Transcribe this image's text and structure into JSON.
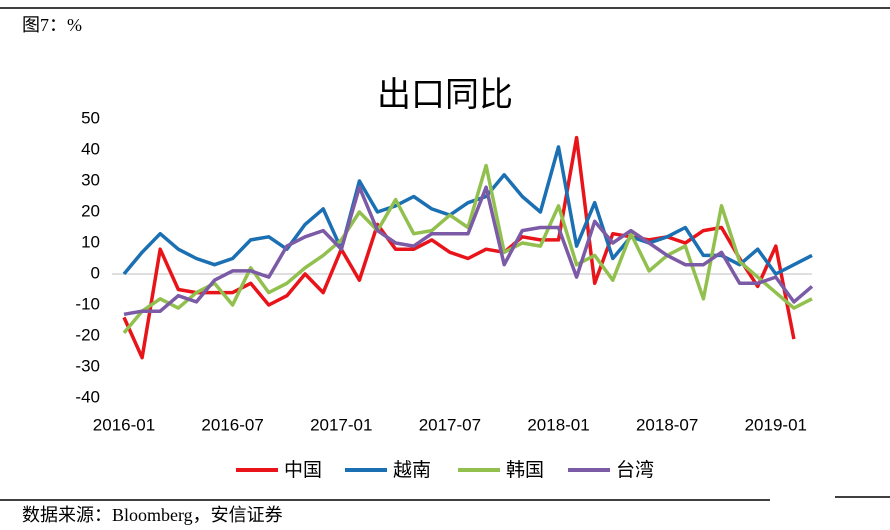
{
  "header": "图7：%",
  "source": "数据来源：Bloomberg，安信证券",
  "chart_data": {
    "type": "line",
    "title": "出口同比",
    "categories": [
      "2016-01",
      null,
      null,
      null,
      null,
      null,
      "2016-07",
      null,
      null,
      null,
      null,
      null,
      "2017-01",
      null,
      null,
      null,
      null,
      null,
      "2017-07",
      null,
      null,
      null,
      null,
      null,
      "2018-01",
      null,
      null,
      null,
      null,
      null,
      "2018-07",
      null,
      null,
      null,
      null,
      null,
      "2019-01",
      null,
      null
    ],
    "ylim": [
      -40,
      50
    ],
    "yticks": [
      -40,
      -30,
      -20,
      -10,
      0,
      10,
      20,
      30,
      40,
      50
    ],
    "legend": "bottom",
    "series": [
      {
        "name": "中国",
        "color": "#e8141a",
        "values": [
          -14,
          -27,
          8,
          -5,
          -6,
          -6,
          -6,
          -3,
          -10,
          -7,
          0,
          -6,
          8,
          -2,
          16,
          8,
          8,
          11,
          7,
          5,
          8,
          7,
          12,
          11,
          11,
          44,
          -3,
          13,
          12,
          11,
          12,
          10,
          14,
          15,
          5,
          -4,
          9,
          -21,
          null
        ]
      },
      {
        "name": "越南",
        "color": "#1b6fb3",
        "values": [
          0,
          7,
          13,
          8,
          5,
          3,
          5,
          11,
          12,
          8,
          16,
          21,
          8,
          30,
          20,
          22,
          25,
          21,
          19,
          23,
          25,
          32,
          25,
          20,
          41,
          9,
          23,
          5,
          12,
          10,
          12,
          15,
          6,
          6,
          3,
          8,
          0,
          3,
          6
        ]
      },
      {
        "name": "韩国",
        "color": "#92c04e",
        "values": [
          -19,
          -12,
          -8,
          -11,
          -6,
          -3,
          -10,
          2,
          -6,
          -3,
          2,
          6,
          11,
          20,
          14,
          24,
          13,
          14,
          19,
          15,
          35,
          7,
          10,
          9,
          22,
          3,
          6,
          -2,
          13,
          1,
          6,
          9,
          -8,
          22,
          4,
          -1,
          -6,
          -11,
          -8
        ]
      },
      {
        "name": "台湾",
        "color": "#7b5aa6",
        "values": [
          -13,
          -12,
          -12,
          -7,
          -9,
          -2,
          1,
          1,
          -1,
          9,
          12,
          14,
          8,
          28,
          14,
          10,
          9,
          13,
          13,
          13,
          28,
          3,
          14,
          15,
          15,
          -1,
          17,
          10,
          14,
          10,
          6,
          3,
          3,
          7,
          -3,
          -3,
          -1,
          -9,
          -4
        ]
      }
    ]
  }
}
